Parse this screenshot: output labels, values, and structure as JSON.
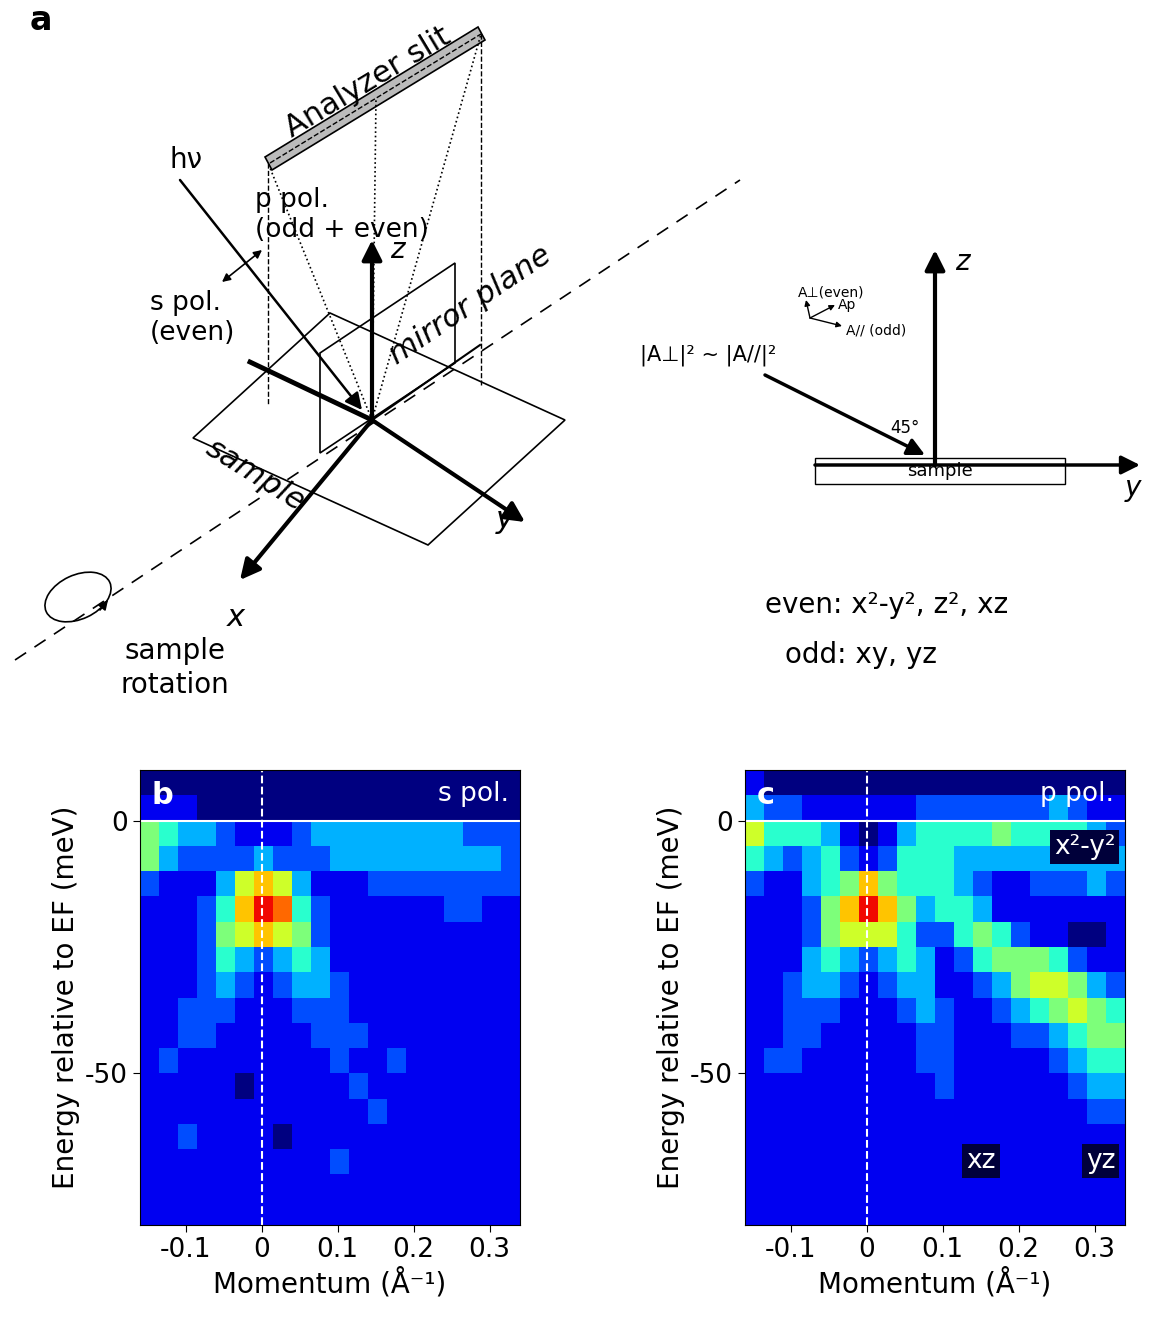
{
  "diagram": {
    "panel_label": "a",
    "analyzer": "Analyzer slit",
    "photon": "hν",
    "p_pol": "p pol.\n(odd + even)",
    "s_pol": "s pol.\n(even)",
    "z_axis": "z",
    "x_axis": "x",
    "y_axis": "y",
    "mirror_plane": "mirror plane",
    "sample": "sample",
    "rotation": "sample\nrotation",
    "inset": {
      "z_axis": "z",
      "y_axis": "y",
      "sample": "sample",
      "a_perp": "A⊥(even)",
      "a_p": "Ap",
      "a_par": "A// (odd)",
      "relation": "|A⊥|² ~ |A//|²",
      "angle": "45°"
    },
    "orbitals": {
      "even": "even: x²-y², z², xz",
      "odd": "odd: xy, yz"
    }
  },
  "chart_data": [
    {
      "type": "heatmap",
      "panel_label": "b",
      "annotations": [
        "s pol."
      ],
      "x_label": "Momentum (Å⁻¹)",
      "y_label": "Energy relative to EF (meV)",
      "xlim": [
        -0.16,
        0.34
      ],
      "ylim": [
        -80,
        10
      ],
      "xticks": [
        -0.1,
        0,
        0.1,
        0.2,
        0.3
      ],
      "yticks": [
        -50,
        0
      ],
      "hline": 0,
      "vline": 0,
      "clim": [
        0,
        10
      ],
      "cells": [
        [
          0,
          0,
          0,
          0,
          0,
          0,
          0,
          0,
          0,
          0,
          0,
          0,
          0,
          0,
          0,
          0,
          0,
          0,
          0,
          0
        ],
        [
          1,
          1,
          1,
          0,
          0,
          0,
          0,
          0,
          0,
          0,
          0,
          0,
          0,
          0,
          0,
          0,
          0,
          0,
          0,
          0
        ],
        [
          5,
          4,
          3,
          3,
          2,
          1,
          1,
          1,
          2,
          3,
          3,
          3,
          3,
          3,
          3,
          3,
          3,
          2,
          2,
          2
        ],
        [
          5,
          3,
          2,
          2,
          2,
          2,
          3,
          2,
          2,
          2,
          3,
          3,
          3,
          3,
          3,
          3,
          3,
          3,
          3,
          2
        ],
        [
          2,
          1,
          1,
          1,
          3,
          6,
          7,
          6,
          3,
          1,
          1,
          1,
          2,
          2,
          2,
          2,
          2,
          2,
          2,
          2
        ],
        [
          1,
          1,
          1,
          2,
          4,
          7,
          9,
          8,
          4,
          2,
          1,
          1,
          1,
          1,
          1,
          1,
          2,
          2,
          1,
          1
        ],
        [
          1,
          1,
          1,
          2,
          5,
          6,
          7,
          6,
          5,
          2,
          1,
          1,
          1,
          1,
          1,
          1,
          1,
          1,
          1,
          1
        ],
        [
          1,
          1,
          1,
          2,
          4,
          3,
          2,
          3,
          4,
          3,
          1,
          1,
          1,
          1,
          1,
          1,
          1,
          1,
          1,
          1
        ],
        [
          1,
          1,
          1,
          2,
          3,
          2,
          1,
          2,
          3,
          3,
          2,
          1,
          1,
          1,
          1,
          1,
          1,
          1,
          1,
          1
        ],
        [
          1,
          1,
          2,
          2,
          2,
          1,
          1,
          1,
          2,
          2,
          2,
          1,
          1,
          1,
          1,
          1,
          1,
          1,
          1,
          1
        ],
        [
          1,
          1,
          2,
          2,
          1,
          1,
          1,
          1,
          1,
          2,
          2,
          2,
          1,
          1,
          1,
          1,
          1,
          1,
          1,
          1
        ],
        [
          1,
          2,
          1,
          1,
          1,
          1,
          1,
          1,
          1,
          1,
          2,
          1,
          1,
          2,
          1,
          1,
          1,
          1,
          1,
          1
        ],
        [
          1,
          1,
          1,
          1,
          1,
          0,
          1,
          1,
          1,
          1,
          1,
          2,
          1,
          1,
          1,
          1,
          1,
          1,
          1,
          1
        ],
        [
          1,
          1,
          1,
          1,
          1,
          1,
          1,
          1,
          1,
          1,
          1,
          1,
          2,
          1,
          1,
          1,
          1,
          1,
          1,
          1
        ],
        [
          1,
          1,
          2,
          1,
          1,
          1,
          1,
          0,
          1,
          1,
          1,
          1,
          1,
          1,
          1,
          1,
          1,
          1,
          1,
          1
        ],
        [
          1,
          1,
          1,
          1,
          1,
          1,
          1,
          1,
          1,
          1,
          2,
          1,
          1,
          1,
          1,
          1,
          1,
          1,
          1,
          1
        ],
        [
          1,
          1,
          1,
          1,
          1,
          1,
          1,
          1,
          1,
          1,
          1,
          1,
          1,
          1,
          1,
          1,
          1,
          1,
          1,
          1
        ],
        [
          1,
          1,
          1,
          1,
          1,
          1,
          1,
          1,
          1,
          1,
          1,
          1,
          1,
          1,
          1,
          1,
          1,
          1,
          1,
          1
        ]
      ]
    },
    {
      "type": "heatmap",
      "panel_label": "c",
      "annotations": [
        "p pol.",
        "x²-y²",
        "xz",
        "yz"
      ],
      "x_label": "Momentum (Å⁻¹)",
      "y_label": "Energy relative to EF (meV)",
      "xlim": [
        -0.16,
        0.34
      ],
      "ylim": [
        -80,
        10
      ],
      "xticks": [
        -0.1,
        0,
        0.1,
        0.2,
        0.3
      ],
      "yticks": [
        -50,
        0
      ],
      "hline": 0,
      "vline": 0,
      "clim": [
        0,
        10
      ],
      "cells": [
        [
          1,
          0,
          0,
          0,
          0,
          0,
          0,
          0,
          0,
          0,
          0,
          0,
          0,
          0,
          0,
          0,
          0,
          0,
          0,
          0
        ],
        [
          3,
          2,
          2,
          1,
          1,
          1,
          1,
          1,
          1,
          2,
          2,
          2,
          2,
          2,
          2,
          2,
          3,
          2,
          1,
          1
        ],
        [
          6,
          4,
          4,
          4,
          3,
          1,
          0,
          1,
          3,
          4,
          4,
          4,
          4,
          5,
          4,
          4,
          4,
          4,
          3,
          2
        ],
        [
          4,
          3,
          2,
          3,
          4,
          2,
          1,
          2,
          4,
          4,
          4,
          3,
          3,
          3,
          3,
          3,
          3,
          3,
          3,
          3
        ],
        [
          2,
          1,
          1,
          3,
          4,
          5,
          7,
          5,
          4,
          4,
          4,
          3,
          2,
          1,
          1,
          2,
          2,
          2,
          3,
          2
        ],
        [
          1,
          1,
          1,
          2,
          5,
          7,
          9,
          7,
          5,
          3,
          4,
          4,
          3,
          1,
          1,
          1,
          1,
          1,
          1,
          1
        ],
        [
          1,
          1,
          1,
          2,
          5,
          6,
          6,
          6,
          4,
          2,
          2,
          4,
          5,
          4,
          2,
          1,
          1,
          0,
          0,
          1
        ],
        [
          1,
          1,
          1,
          3,
          4,
          3,
          2,
          3,
          4,
          3,
          1,
          2,
          4,
          5,
          5,
          5,
          4,
          2,
          1,
          1
        ],
        [
          1,
          1,
          2,
          3,
          3,
          2,
          1,
          2,
          3,
          3,
          1,
          1,
          2,
          3,
          5,
          6,
          6,
          5,
          3,
          2
        ],
        [
          1,
          1,
          2,
          2,
          2,
          1,
          1,
          1,
          2,
          3,
          2,
          1,
          1,
          2,
          3,
          4,
          5,
          6,
          5,
          4
        ],
        [
          1,
          1,
          2,
          2,
          1,
          1,
          1,
          1,
          1,
          2,
          2,
          1,
          1,
          1,
          2,
          2,
          3,
          4,
          5,
          5
        ],
        [
          1,
          2,
          2,
          1,
          1,
          1,
          1,
          1,
          1,
          2,
          2,
          1,
          1,
          1,
          1,
          1,
          2,
          3,
          4,
          4
        ],
        [
          1,
          1,
          1,
          1,
          1,
          1,
          1,
          1,
          1,
          1,
          2,
          1,
          1,
          1,
          1,
          1,
          1,
          2,
          3,
          3
        ],
        [
          1,
          1,
          1,
          1,
          1,
          1,
          1,
          1,
          1,
          1,
          1,
          1,
          1,
          1,
          1,
          1,
          1,
          1,
          2,
          2
        ],
        [
          1,
          1,
          1,
          1,
          1,
          1,
          1,
          1,
          1,
          1,
          1,
          1,
          1,
          1,
          1,
          1,
          1,
          1,
          1,
          1
        ],
        [
          1,
          1,
          1,
          1,
          1,
          1,
          1,
          1,
          1,
          1,
          1,
          1,
          1,
          1,
          1,
          1,
          1,
          1,
          1,
          1
        ],
        [
          1,
          1,
          1,
          1,
          1,
          1,
          1,
          1,
          1,
          1,
          1,
          1,
          1,
          1,
          1,
          1,
          1,
          1,
          1,
          1
        ],
        [
          1,
          1,
          1,
          1,
          1,
          1,
          1,
          1,
          1,
          1,
          1,
          1,
          1,
          1,
          1,
          1,
          1,
          1,
          1,
          1
        ]
      ]
    }
  ]
}
